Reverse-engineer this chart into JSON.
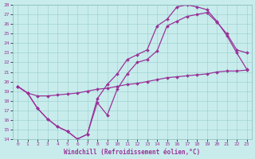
{
  "xlabel": "Windchill (Refroidissement éolien,°C)",
  "bg_color": "#c8ecec",
  "line_color": "#993399",
  "xlim": [
    -0.5,
    23.5
  ],
  "ylim": [
    14,
    28
  ],
  "xticks": [
    0,
    1,
    2,
    3,
    4,
    5,
    6,
    7,
    8,
    9,
    10,
    11,
    12,
    13,
    14,
    15,
    16,
    17,
    18,
    19,
    20,
    21,
    22,
    23
  ],
  "yticks": [
    14,
    15,
    16,
    17,
    18,
    19,
    20,
    21,
    22,
    23,
    24,
    25,
    26,
    27,
    28
  ],
  "line1_x": [
    0,
    1,
    2,
    3,
    4,
    5,
    6,
    7,
    8,
    9,
    10,
    11,
    12,
    13,
    14,
    15,
    16,
    17,
    18,
    19,
    20,
    21,
    22,
    23
  ],
  "line1_y": [
    19.5,
    18.8,
    17.2,
    16.1,
    15.3,
    14.8,
    14.0,
    14.5,
    18.2,
    19.7,
    20.8,
    22.3,
    22.8,
    23.3,
    25.8,
    26.5,
    27.8,
    28.0,
    27.8,
    27.5,
    26.3,
    24.8,
    23.0,
    21.3
  ],
  "line2_x": [
    0,
    1,
    2,
    3,
    4,
    5,
    6,
    7,
    8,
    9,
    10,
    11,
    12,
    13,
    14,
    15,
    16,
    17,
    18,
    19,
    20,
    21,
    22,
    23
  ],
  "line2_y": [
    19.5,
    18.8,
    17.2,
    16.1,
    15.3,
    14.8,
    14.0,
    14.5,
    17.8,
    16.5,
    19.2,
    20.8,
    22.0,
    22.3,
    23.2,
    25.8,
    26.3,
    26.8,
    27.0,
    27.2,
    26.2,
    25.0,
    23.3,
    23.0
  ],
  "line3_x": [
    0,
    1,
    2,
    3,
    4,
    5,
    6,
    7,
    8,
    9,
    10,
    11,
    12,
    13,
    14,
    15,
    16,
    17,
    18,
    19,
    20,
    21,
    22,
    23
  ],
  "line3_y": [
    19.5,
    18.8,
    18.5,
    18.5,
    18.6,
    18.7,
    18.8,
    19.0,
    19.2,
    19.3,
    19.5,
    19.7,
    19.8,
    20.0,
    20.2,
    20.4,
    20.5,
    20.6,
    20.7,
    20.8,
    21.0,
    21.1,
    21.1,
    21.2
  ],
  "marker": "D",
  "marker_size": 2.0,
  "linewidth": 0.9,
  "font_size": 5.5,
  "grid_color": "#99cccc"
}
